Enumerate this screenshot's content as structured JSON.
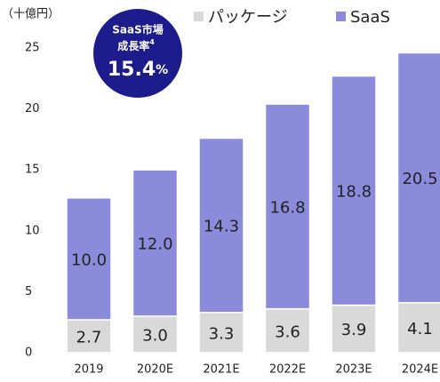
{
  "chart_data": {
    "type": "stacked_bar",
    "unit_label": "（十億円）",
    "categories": [
      "2019",
      "2020E",
      "2021E",
      "2022E",
      "2023E",
      "2024E"
    ],
    "series": [
      {
        "name": "パッケージ",
        "color": "#d9d9d9",
        "values": [
          2.7,
          3.0,
          3.3,
          3.6,
          3.9,
          4.1
        ],
        "value_labels": [
          "2.7",
          "3.0",
          "3.3",
          "3.6",
          "3.9",
          "4.1"
        ]
      },
      {
        "name": "SaaS",
        "color": "#8b8bdc",
        "values": [
          10.0,
          12.0,
          14.3,
          16.8,
          18.8,
          20.5
        ],
        "value_labels": [
          "10.0",
          "12.0",
          "14.3",
          "16.8",
          "18.8",
          "20.5"
        ]
      }
    ],
    "ylim": [
      0,
      25
    ],
    "yticks": [
      0,
      5,
      10,
      15,
      20,
      25
    ],
    "grid": false,
    "annotation": {
      "line1": "SaaS市場",
      "line2": "成長率",
      "note": "4",
      "value": "15.4",
      "unit": "%",
      "color": "#1c1c8c"
    }
  }
}
